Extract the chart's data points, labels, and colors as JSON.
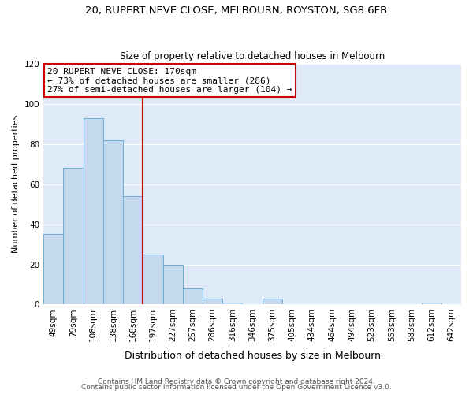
{
  "title1": "20, RUPERT NEVE CLOSE, MELBOURN, ROYSTON, SG8 6FB",
  "title2": "Size of property relative to detached houses in Melbourn",
  "xlabel": "Distribution of detached houses by size in Melbourn",
  "ylabel": "Number of detached properties",
  "categories": [
    "49sqm",
    "79sqm",
    "108sqm",
    "138sqm",
    "168sqm",
    "197sqm",
    "227sqm",
    "257sqm",
    "286sqm",
    "316sqm",
    "346sqm",
    "375sqm",
    "405sqm",
    "434sqm",
    "464sqm",
    "494sqm",
    "523sqm",
    "553sqm",
    "583sqm",
    "612sqm",
    "642sqm"
  ],
  "values": [
    35,
    68,
    93,
    82,
    54,
    25,
    20,
    8,
    3,
    1,
    0,
    3,
    0,
    0,
    0,
    0,
    0,
    0,
    0,
    1,
    0
  ],
  "bar_color": "#c5d9ef",
  "bar_edge_color": "#6aacd6",
  "fig_background_color": "#ffffff",
  "axes_background_color": "#deeaf7",
  "grid_color": "#ffffff",
  "vline_x_index": 4,
  "vline_color": "#cc0000",
  "annotation_line1": "20 RUPERT NEVE CLOSE: 170sqm",
  "annotation_line2": "← 73% of detached houses are smaller (286)",
  "annotation_line3": "27% of semi-detached houses are larger (104) →",
  "annotation_box_facecolor": "#ffffff",
  "annotation_box_edgecolor": "#cc0000",
  "footer1": "Contains HM Land Registry data © Crown copyright and database right 2024.",
  "footer2": "Contains public sector information licensed under the Open Government Licence v3.0.",
  "ylim": [
    0,
    120
  ],
  "yticks": [
    0,
    20,
    40,
    60,
    80,
    100,
    120
  ],
  "title1_fontsize": 9.5,
  "title2_fontsize": 8.5,
  "xlabel_fontsize": 9,
  "ylabel_fontsize": 8,
  "tick_fontsize": 7.5,
  "annotation_fontsize": 8,
  "footer_fontsize": 6.5
}
